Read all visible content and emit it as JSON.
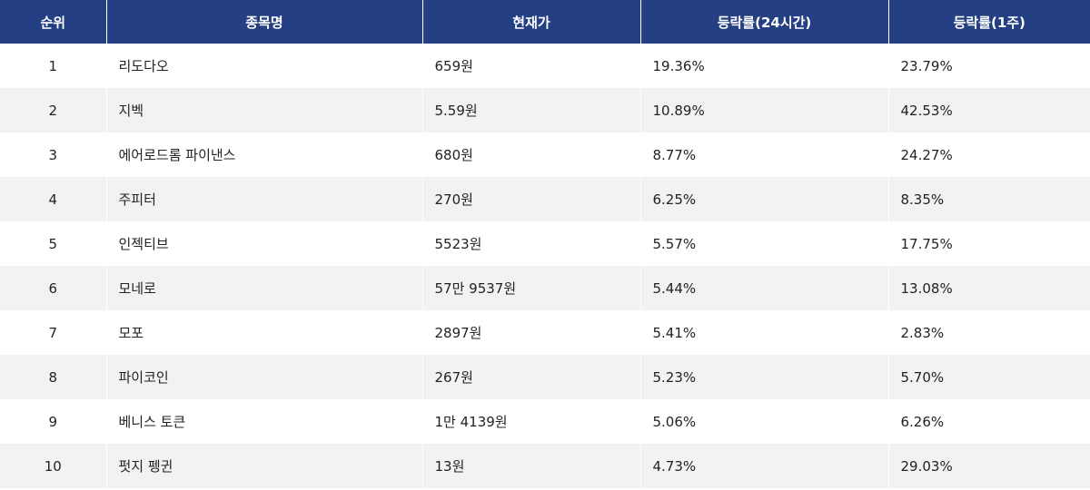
{
  "table": {
    "headers": [
      "순위",
      "종목명",
      "현재가",
      "등락률(24시간)",
      "등락률(1주)"
    ],
    "rows": [
      [
        "1",
        "리도다오",
        "659원",
        "19.36%",
        "23.79%"
      ],
      [
        "2",
        "지벡",
        "5.59원",
        "10.89%",
        "42.53%"
      ],
      [
        "3",
        "에어로드롬 파이낸스",
        "680원",
        "8.77%",
        "24.27%"
      ],
      [
        "4",
        "주피터",
        "270원",
        "6.25%",
        "8.35%"
      ],
      [
        "5",
        "인젝티브",
        "5523원",
        "5.57%",
        "17.75%"
      ],
      [
        "6",
        "모네로",
        "57만 9537원",
        "5.44%",
        "13.08%"
      ],
      [
        "7",
        "모포",
        "2897원",
        "5.41%",
        "2.83%"
      ],
      [
        "8",
        "파이코인",
        "267원",
        "5.23%",
        "5.70%"
      ],
      [
        "9",
        "베니스 토큰",
        "1만 4139원",
        "5.06%",
        "6.26%"
      ],
      [
        "10",
        "펏지 펭귄",
        "13원",
        "4.73%",
        "29.03%"
      ]
    ]
  },
  "colors": {
    "header_bg": "#243f84",
    "header_text": "#ffffff",
    "row_alt_bg": "#f2f2f2",
    "row_bg": "#ffffff",
    "text": "#222222"
  }
}
